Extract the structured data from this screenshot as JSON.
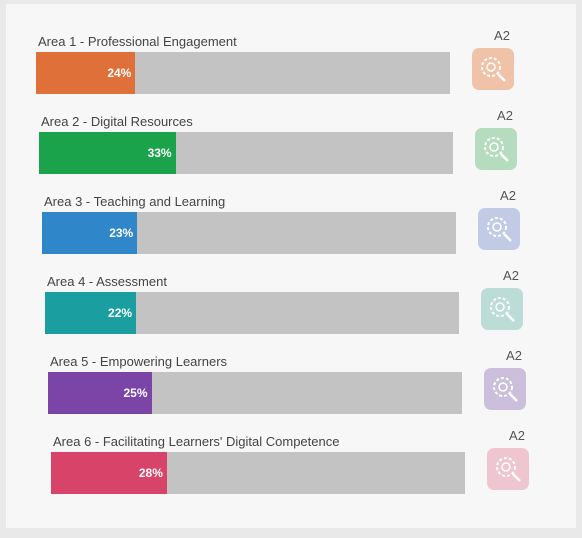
{
  "range": [
    0,
    100
  ],
  "areas": [
    {
      "label": "Area 1 - Professional Engagement",
      "value": 24,
      "value_label": "24%",
      "level": "A2",
      "color": "#e0703a",
      "icon_color": "#f0c2a8"
    },
    {
      "label": "Area 2 - Digital Resources",
      "value": 33,
      "value_label": "33%",
      "level": "A2",
      "color": "#1aa34a",
      "icon_color": "#b5dcbf"
    },
    {
      "label": "Area 3 - Teaching and Learning",
      "value": 23,
      "value_label": "23%",
      "level": "A2",
      "color": "#2f86c8",
      "icon_color": "#c2cbe6"
    },
    {
      "label": "Area 4 - Assessment",
      "value": 22,
      "value_label": "22%",
      "level": "A2",
      "color": "#1a9ea0",
      "icon_color": "#bcdcd8"
    },
    {
      "label": "Area 5 - Empowering Learners",
      "value": 25,
      "value_label": "25%",
      "level": "A2",
      "color": "#7b45a8",
      "icon_color": "#cbbfdc"
    },
    {
      "label": "Area 6 - Facilitating Learners' Digital Competence",
      "value": 28,
      "value_label": "28%",
      "level": "A2",
      "color": "#d8436a",
      "icon_color": "#efc6cf"
    }
  ]
}
